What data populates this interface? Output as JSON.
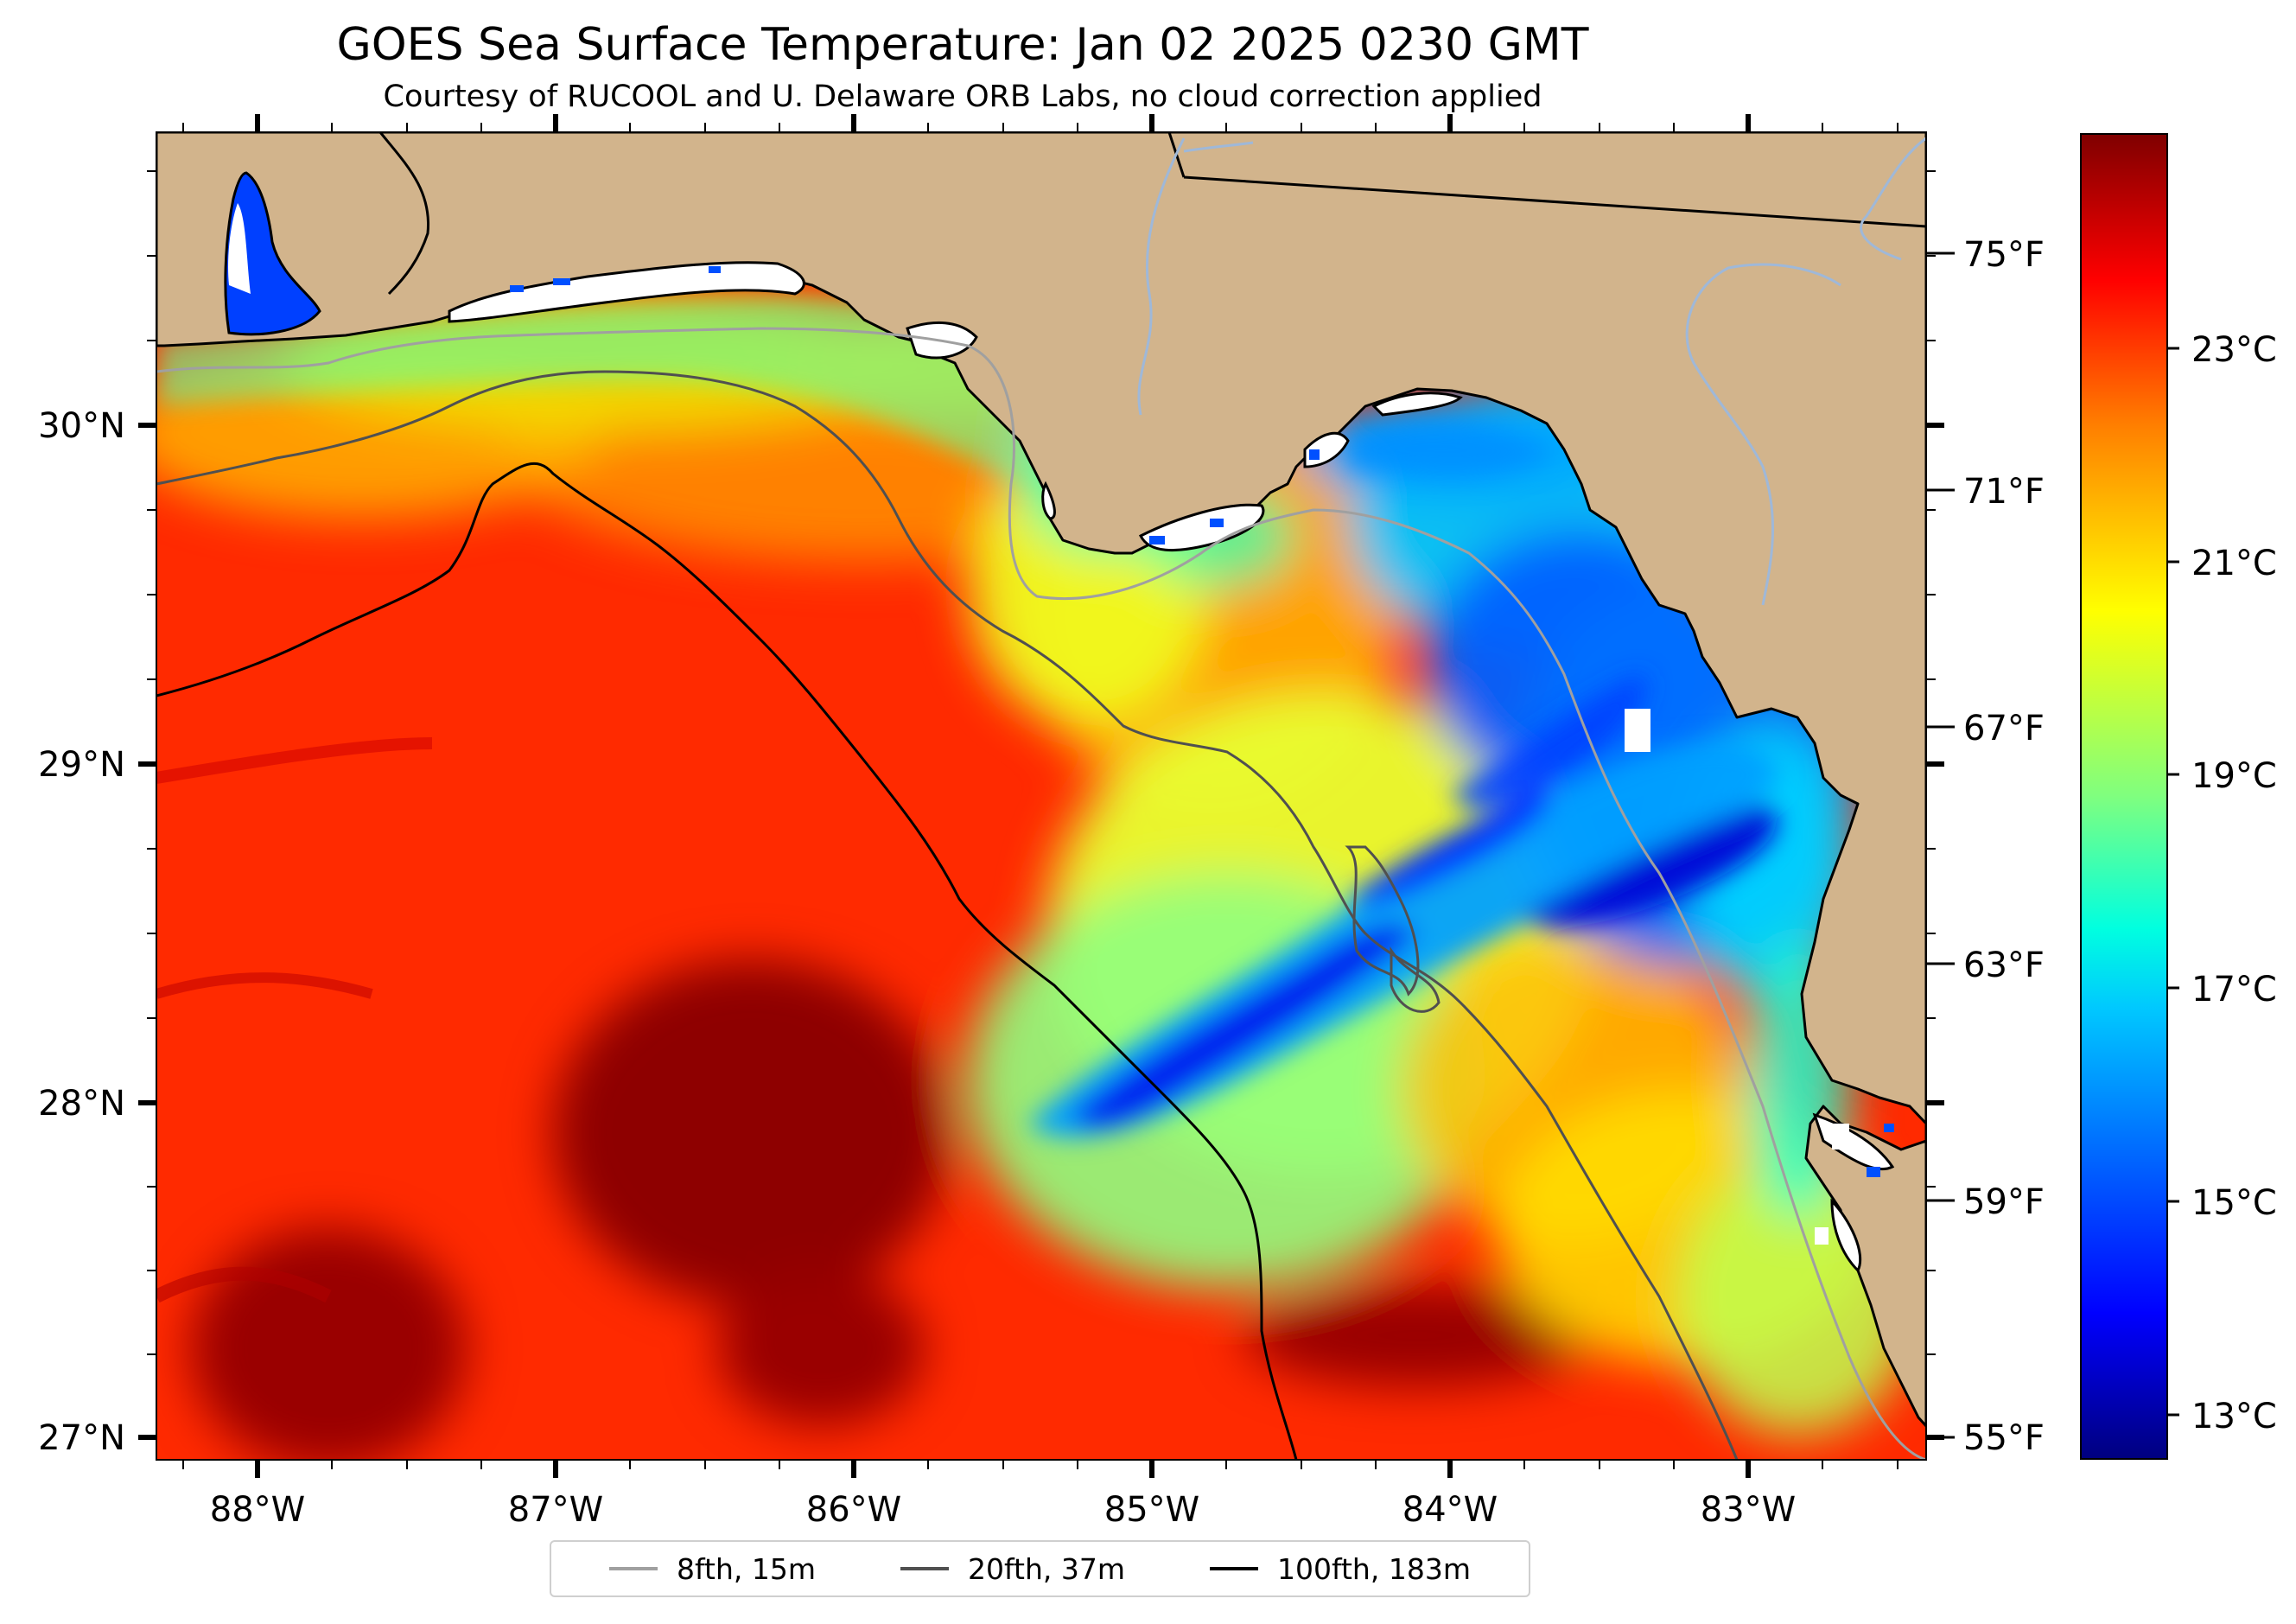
{
  "title": "GOES Sea Surface Temperature: Jan 02 2025 0230 GMT",
  "subtitle": "Courtesy of RUCOOL and U. Delaware ORB Labs, no cloud correction applied",
  "map": {
    "lon_ticks": [
      "88°W",
      "87°W",
      "86°W",
      "85°W",
      "84°W",
      "83°W"
    ],
    "lat_ticks": [
      "30°N",
      "29°N",
      "28°N",
      "27°N"
    ]
  },
  "colorbar": {
    "fahrenheit_ticks": [
      "75°F",
      "71°F",
      "67°F",
      "63°F",
      "59°F",
      "55°F"
    ],
    "celsius_ticks": [
      "23°C",
      "21°C",
      "19°C",
      "17°C",
      "15°C",
      "13°C"
    ],
    "colormap": [
      "#00007f",
      "#0000ff",
      "#007fff",
      "#00ffff",
      "#7fff7f",
      "#ffff00",
      "#ff7f00",
      "#ff0000",
      "#7f0000"
    ]
  },
  "colors": {
    "land": "#d2b48c",
    "isobath_8fth": "#a0a0a0",
    "isobath_20fth": "#505050",
    "isobath_100fth": "#000000",
    "rivers": "#9fb8d8"
  },
  "legend": [
    {
      "label": "8fth, 15m",
      "color": "#a0a0a0"
    },
    {
      "label": "20fth, 37m",
      "color": "#505050"
    },
    {
      "label": "100fth, 183m",
      "color": "#000000"
    }
  ]
}
